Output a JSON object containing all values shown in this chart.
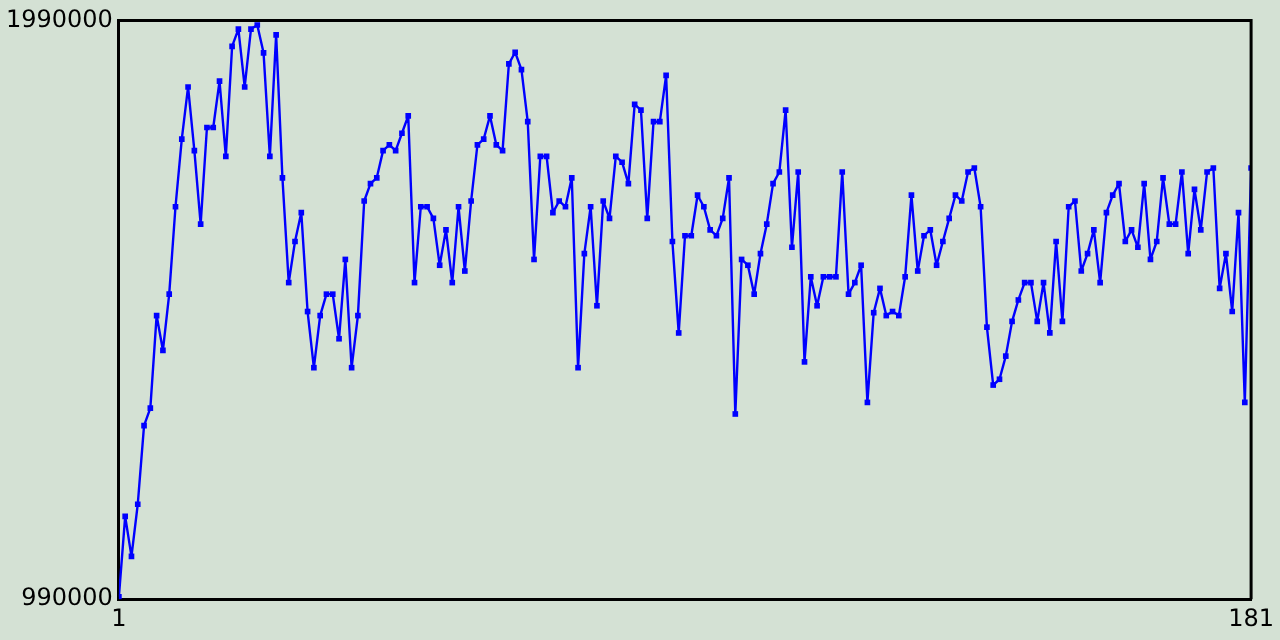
{
  "chart_data": {
    "type": "line",
    "x": [
      1,
      2,
      3,
      4,
      5,
      6,
      7,
      8,
      9,
      10,
      11,
      12,
      13,
      14,
      15,
      16,
      17,
      18,
      19,
      20,
      21,
      22,
      23,
      24,
      25,
      26,
      27,
      28,
      29,
      30,
      31,
      32,
      33,
      34,
      35,
      36,
      37,
      38,
      39,
      40,
      41,
      42,
      43,
      44,
      45,
      46,
      47,
      48,
      49,
      50,
      51,
      52,
      53,
      54,
      55,
      56,
      57,
      58,
      59,
      60,
      61,
      62,
      63,
      64,
      65,
      66,
      67,
      68,
      69,
      70,
      71,
      72,
      73,
      74,
      75,
      76,
      77,
      78,
      79,
      80,
      81,
      82,
      83,
      84,
      85,
      86,
      87,
      88,
      89,
      90,
      91,
      92,
      93,
      94,
      95,
      96,
      97,
      98,
      99,
      100,
      101,
      102,
      103,
      104,
      105,
      106,
      107,
      108,
      109,
      110,
      111,
      112,
      113,
      114,
      115,
      116,
      117,
      118,
      119,
      120,
      121,
      122,
      123,
      124,
      125,
      126,
      127,
      128,
      129,
      130,
      131,
      132,
      133,
      134,
      135,
      136,
      137,
      138,
      139,
      140,
      141,
      142,
      143,
      144,
      145,
      146,
      147,
      148,
      149,
      150,
      151,
      152,
      153,
      154,
      155,
      156,
      157,
      158,
      159,
      160,
      161,
      162,
      163,
      164,
      165,
      166,
      167,
      168,
      169,
      170,
      171,
      172,
      173,
      174,
      175,
      176,
      177,
      178,
      179,
      180,
      181
    ],
    "series": [
      {
        "color": "#0000ff",
        "values": [
          994000,
          1133000,
          1064000,
          1154000,
          1290000,
          1320000,
          1480000,
          1420000,
          1517000,
          1668000,
          1785000,
          1875000,
          1765000,
          1638000,
          1805000,
          1805000,
          1885000,
          1755000,
          1945000,
          1975000,
          1875000,
          1975000,
          1982000,
          1934000,
          1755000,
          1965000,
          1718000,
          1537000,
          1608000,
          1658000,
          1487000,
          1390000,
          1480000,
          1517000,
          1517000,
          1440000,
          1577000,
          1390000,
          1480000,
          1678000,
          1708000,
          1718000,
          1765000,
          1775000,
          1765000,
          1795000,
          1825000,
          1537000,
          1668000,
          1668000,
          1648000,
          1567000,
          1628000,
          1537000,
          1668000,
          1557000,
          1678000,
          1775000,
          1785000,
          1825000,
          1775000,
          1765000,
          1915000,
          1935000,
          1905000,
          1815000,
          1577000,
          1755000,
          1755000,
          1658000,
          1678000,
          1668000,
          1718000,
          1390000,
          1587000,
          1668000,
          1497000,
          1678000,
          1648000,
          1755000,
          1745000,
          1708000,
          1845000,
          1835000,
          1648000,
          1815000,
          1815000,
          1895000,
          1608000,
          1450000,
          1618000,
          1618000,
          1688000,
          1668000,
          1628000,
          1618000,
          1648000,
          1718000,
          1310000,
          1577000,
          1567000,
          1517000,
          1587000,
          1638000,
          1708000,
          1728000,
          1835000,
          1598000,
          1728000,
          1400000,
          1547000,
          1497000,
          1547000,
          1547000,
          1547000,
          1728000,
          1517000,
          1537000,
          1567000,
          1330000,
          1485000,
          1527000,
          1480000,
          1487000,
          1480000,
          1547000,
          1688000,
          1557000,
          1618000,
          1628000,
          1567000,
          1608000,
          1648000,
          1688000,
          1678000,
          1728000,
          1735000,
          1668000,
          1460000,
          1360000,
          1370000,
          1410000,
          1470000,
          1507000,
          1537000,
          1537000,
          1470000,
          1537000,
          1450000,
          1608000,
          1470000,
          1668000,
          1678000,
          1557000,
          1587000,
          1628000,
          1537000,
          1658000,
          1688000,
          1708000,
          1608000,
          1628000,
          1598000,
          1708000,
          1577000,
          1608000,
          1718000,
          1638000,
          1638000,
          1728000,
          1587000,
          1698000,
          1628000,
          1728000,
          1735000,
          1527000,
          1587000,
          1487000,
          1658000,
          1330000,
          1735000
        ]
      }
    ],
    "xlim": [
      1,
      181
    ],
    "xticks": [
      1,
      181
    ],
    "ylim": [
      990000,
      1990000
    ],
    "yticks": [
      990000,
      1990000
    ],
    "legend": false,
    "marker": "square",
    "line_style": "solid"
  }
}
